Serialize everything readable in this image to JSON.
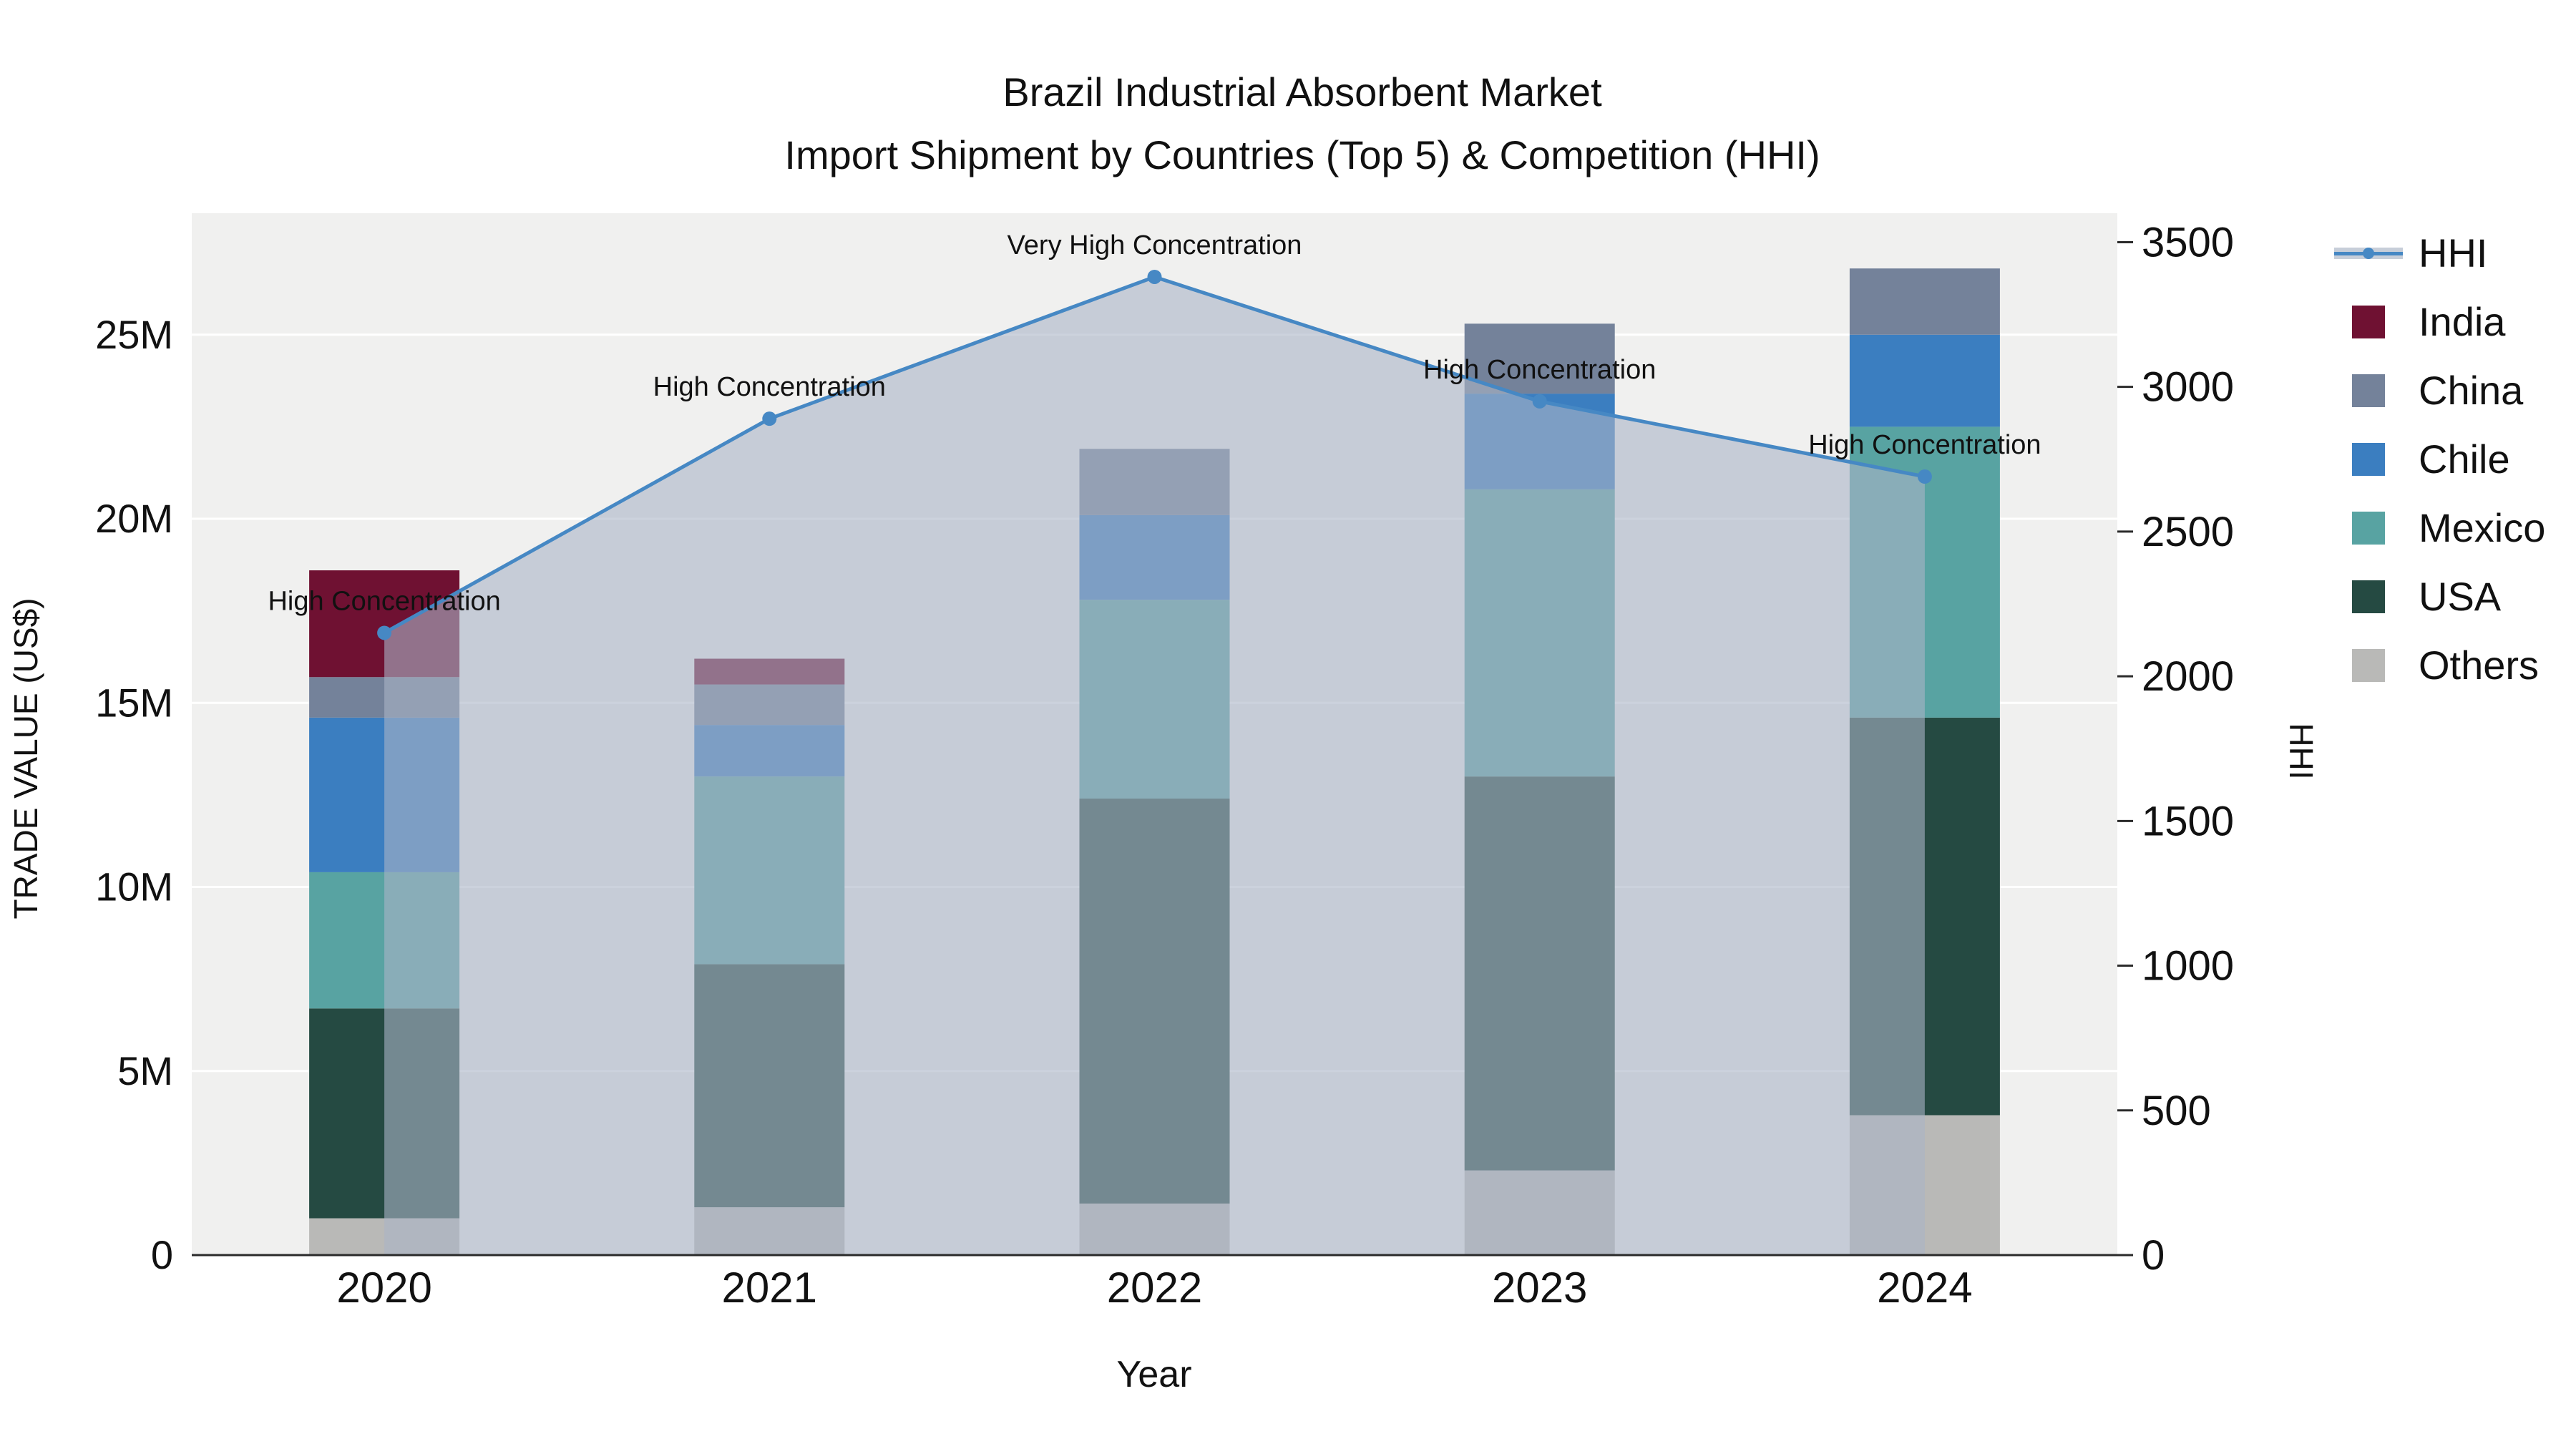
{
  "header": {
    "title": "Brazil Industrial Absorbent Market",
    "subtitle": "Import Shipment by Countries (Top 5) & Competition (HHI)"
  },
  "legend": {
    "items": [
      {
        "label": "HHI",
        "type": "line"
      },
      {
        "label": "India",
        "type": "swatch",
        "color": "#6f1132"
      },
      {
        "label": "China",
        "type": "swatch",
        "color": "#74829a"
      },
      {
        "label": "Chile",
        "type": "swatch",
        "color": "#3b7ec0"
      },
      {
        "label": "Mexico",
        "type": "swatch",
        "color": "#58a3a2"
      },
      {
        "label": "USA",
        "type": "swatch",
        "color": "#254a42"
      },
      {
        "label": "Others",
        "type": "swatch",
        "color": "#b9b9b7"
      }
    ]
  },
  "chart_data": {
    "type": "stacked-bar+line",
    "title": "Brazil Industrial Absorbent Market — Import Shipment by Countries (Top 5) & Competition (HHI)",
    "categories": [
      "2020",
      "2021",
      "2022",
      "2023",
      "2024"
    ],
    "value_unit": "US$ millions",
    "series": [
      {
        "name": "Others",
        "color": "#b9b9b7",
        "values": [
          1.0,
          1.3,
          1.4,
          2.3,
          3.8
        ]
      },
      {
        "name": "USA",
        "color": "#254a42",
        "values": [
          5.7,
          6.6,
          11.0,
          10.7,
          10.8
        ]
      },
      {
        "name": "Mexico",
        "color": "#58a3a2",
        "values": [
          3.7,
          5.1,
          5.4,
          7.8,
          7.9
        ]
      },
      {
        "name": "Chile",
        "color": "#3b7ec0",
        "values": [
          4.2,
          1.4,
          2.3,
          2.6,
          2.5
        ]
      },
      {
        "name": "China",
        "color": "#74829a",
        "values": [
          1.1,
          1.1,
          1.8,
          1.9,
          1.8
        ]
      },
      {
        "name": "India",
        "color": "#6f1132",
        "values": [
          2.9,
          0.7,
          0,
          0,
          0
        ]
      }
    ],
    "hhi": {
      "name": "HHI",
      "color": "#4688c4",
      "area_color": "#aab4c6",
      "values": [
        2150,
        2890,
        3380,
        2950,
        2690
      ],
      "annotations": [
        "High Concentration",
        "High Concentration",
        "Very High Concentration",
        "High Concentration",
        "High Concentration"
      ]
    },
    "axes": {
      "x": {
        "label": "Year"
      },
      "left": {
        "label": "TRADE VALUE (US$)",
        "max": 28.3,
        "ticks": [
          {
            "v": 0,
            "t": "0"
          },
          {
            "v": 5,
            "t": "5M"
          },
          {
            "v": 10,
            "t": "10M"
          },
          {
            "v": 15,
            "t": "15M"
          },
          {
            "v": 20,
            "t": "20M"
          },
          {
            "v": 25,
            "t": "25M"
          }
        ]
      },
      "right": {
        "label": "HHI",
        "max": 3600,
        "ticks": [
          {
            "v": 0,
            "t": "0"
          },
          {
            "v": 500,
            "t": "500"
          },
          {
            "v": 1000,
            "t": "1000"
          },
          {
            "v": 1500,
            "t": "1500"
          },
          {
            "v": 2000,
            "t": "2000"
          },
          {
            "v": 2500,
            "t": "2500"
          },
          {
            "v": 3000,
            "t": "3000"
          },
          {
            "v": 3500,
            "t": "3500"
          }
        ]
      }
    },
    "layout": {
      "grid": true,
      "legend_position": "right",
      "plot_bg": "#f0f0ef"
    }
  }
}
